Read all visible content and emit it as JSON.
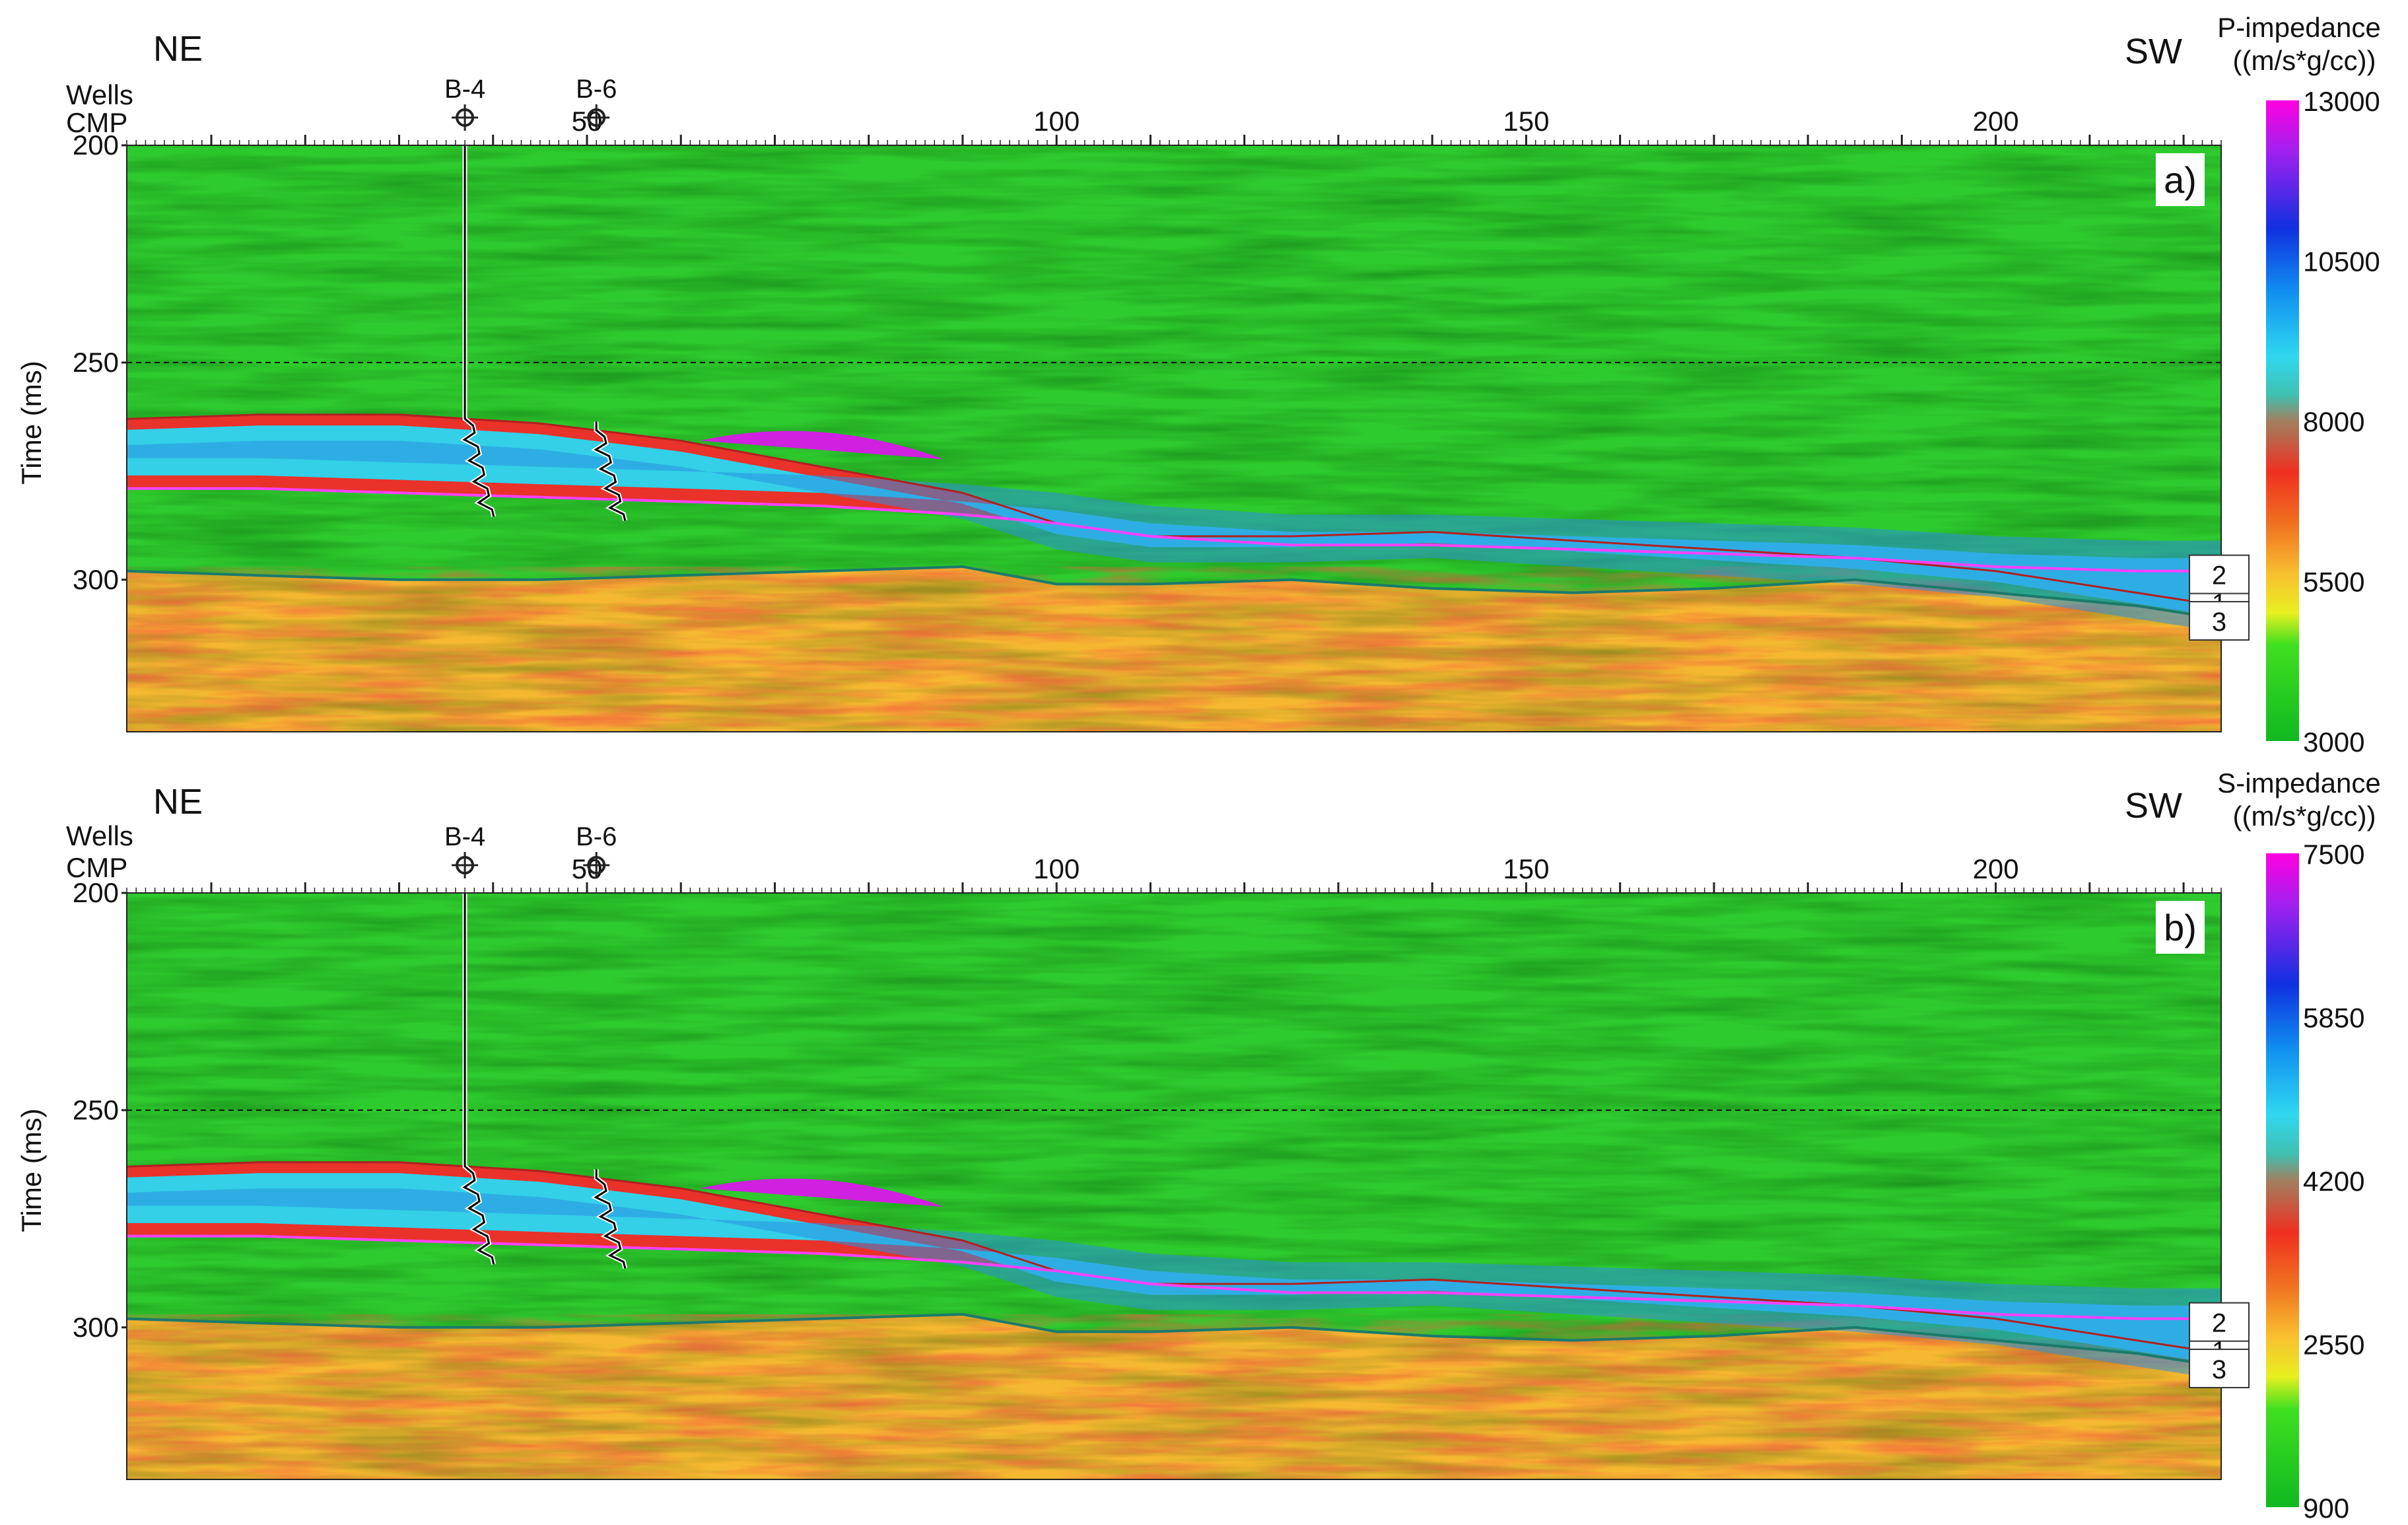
{
  "chart_data": [
    {
      "type": "heatmap",
      "panel_label": "a)",
      "left_label": "NE",
      "right_label": "SW",
      "row_labels": [
        "Wells",
        "CMP"
      ],
      "ylabel": "Time (ms)",
      "xlim": [
        1,
        224
      ],
      "ylim": [
        200,
        335
      ],
      "x_ticks": [
        50,
        100,
        150,
        200
      ],
      "y_ticks": [
        200,
        250,
        300
      ],
      "wells": [
        {
          "name": "B-4",
          "cmp": 37
        },
        {
          "name": "B-6",
          "cmp": 51
        }
      ],
      "colorbar": {
        "title_lines": [
          "P-impedance",
          "((m/s*g/cc))"
        ],
        "min": 3000,
        "max": 13000,
        "ticks": [
          13000,
          10500,
          8000,
          5500,
          3000
        ]
      },
      "horizons": [
        {
          "label": "1",
          "time": [
            263,
            262,
            262,
            264,
            268,
            274,
            280,
            287,
            290,
            290,
            289,
            291,
            293,
            295,
            298,
            303,
            306
          ]
        },
        {
          "label": "2",
          "time": [
            279,
            279,
            280,
            281,
            282,
            283,
            285,
            287,
            290,
            292,
            292,
            293,
            294,
            295,
            297,
            298,
            298
          ]
        },
        {
          "label": "3",
          "time": [
            298,
            299,
            300,
            300,
            299,
            298,
            297,
            301,
            301,
            300,
            302,
            303,
            302,
            300,
            303,
            306,
            309
          ]
        }
      ],
      "horizon_cmps": [
        1,
        15,
        30,
        45,
        60,
        75,
        90,
        100,
        110,
        125,
        140,
        155,
        170,
        185,
        200,
        215,
        224
      ],
      "reference_time": 250
    },
    {
      "type": "heatmap",
      "panel_label": "b)",
      "left_label": "NE",
      "right_label": "SW",
      "row_labels": [
        "Wells",
        "CMP"
      ],
      "ylabel": "Time (ms)",
      "xlim": [
        1,
        224
      ],
      "ylim": [
        200,
        335
      ],
      "x_ticks": [
        50,
        100,
        150,
        200
      ],
      "y_ticks": [
        200,
        250,
        300
      ],
      "wells": [
        {
          "name": "B-4",
          "cmp": 37
        },
        {
          "name": "B-6",
          "cmp": 51
        }
      ],
      "colorbar": {
        "title_lines": [
          "S-impedance",
          "((m/s*g/cc))"
        ],
        "min": 900,
        "max": 7500,
        "ticks": [
          7500,
          5850,
          4200,
          2550,
          900
        ]
      },
      "horizons": [
        {
          "label": "1",
          "time": [
            263,
            262,
            262,
            264,
            268,
            274,
            280,
            287,
            290,
            290,
            289,
            291,
            293,
            295,
            298,
            303,
            306
          ]
        },
        {
          "label": "2",
          "time": [
            279,
            279,
            280,
            281,
            282,
            283,
            285,
            287,
            290,
            292,
            292,
            293,
            294,
            295,
            297,
            298,
            298
          ]
        },
        {
          "label": "3",
          "time": [
            298,
            299,
            300,
            300,
            299,
            298,
            297,
            301,
            301,
            300,
            302,
            303,
            302,
            300,
            303,
            306,
            309
          ]
        }
      ],
      "horizon_cmps": [
        1,
        15,
        30,
        45,
        60,
        75,
        90,
        100,
        110,
        125,
        140,
        155,
        170,
        185,
        200,
        215,
        224
      ],
      "reference_time": 250
    }
  ],
  "colors": {
    "background": "#ffffff",
    "upper_green": "#2ecb2e",
    "lower_orange": "#f5b830",
    "horizon_magenta": "#ff40ff",
    "horizon_teal": "#1b7a6a",
    "reservoir_cyan": "#33d0e8"
  }
}
